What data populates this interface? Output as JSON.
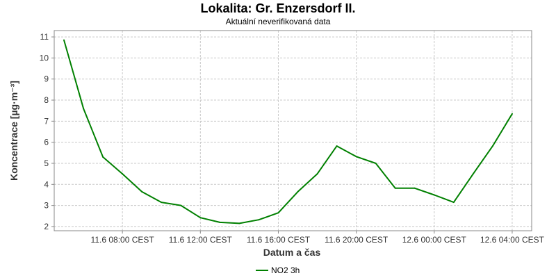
{
  "chart_data": {
    "type": "line",
    "title": "Lokalita: Gr. Enzersdorf II.",
    "subtitle": "Aktuální neverifikovaná data",
    "xlabel": "Datum a čas",
    "ylabel": "Koncentrace [µg·m⁻³]",
    "ylim": [
      1.8,
      11.3
    ],
    "yticks": [
      2,
      3,
      4,
      5,
      6,
      7,
      8,
      9,
      10,
      11
    ],
    "xlim": [
      "2020-06-11 04:30",
      "2020-06-12 05:00"
    ],
    "xticks": [
      {
        "t": "2020-06-11 08:00",
        "label": "11.6 08:00 CEST"
      },
      {
        "t": "2020-06-11 12:00",
        "label": "11.6 12:00 CEST"
      },
      {
        "t": "2020-06-11 16:00",
        "label": "11.6 16:00 CEST"
      },
      {
        "t": "2020-06-11 20:00",
        "label": "11.6 20:00 CEST"
      },
      {
        "t": "2020-06-12 00:00",
        "label": "12.6 00:00 CEST"
      },
      {
        "t": "2020-06-12 04:00",
        "label": "12.6 04:00 CEST"
      }
    ],
    "grid": true,
    "legend_position": "bottom",
    "series": [
      {
        "name": "NO2 3h",
        "color": "#008000",
        "points": [
          {
            "x": "2020-06-11 05:00",
            "y": 10.85
          },
          {
            "x": "2020-06-11 06:00",
            "y": 7.6
          },
          {
            "x": "2020-06-11 07:00",
            "y": 5.3
          },
          {
            "x": "2020-06-11 08:00",
            "y": 4.5
          },
          {
            "x": "2020-06-11 09:00",
            "y": 3.65
          },
          {
            "x": "2020-06-11 10:00",
            "y": 3.15
          },
          {
            "x": "2020-06-11 11:00",
            "y": 3.0
          },
          {
            "x": "2020-06-11 12:00",
            "y": 2.42
          },
          {
            "x": "2020-06-11 13:00",
            "y": 2.2
          },
          {
            "x": "2020-06-11 14:00",
            "y": 2.15
          },
          {
            "x": "2020-06-11 15:00",
            "y": 2.32
          },
          {
            "x": "2020-06-11 16:00",
            "y": 2.65
          },
          {
            "x": "2020-06-11 17:00",
            "y": 3.65
          },
          {
            "x": "2020-06-11 18:00",
            "y": 4.5
          },
          {
            "x": "2020-06-11 19:00",
            "y": 5.82
          },
          {
            "x": "2020-06-11 20:00",
            "y": 5.32
          },
          {
            "x": "2020-06-11 21:00",
            "y": 5.0
          },
          {
            "x": "2020-06-11 22:00",
            "y": 3.82
          },
          {
            "x": "2020-06-11 23:00",
            "y": 3.82
          },
          {
            "x": "2020-06-12 00:00",
            "y": 3.5
          },
          {
            "x": "2020-06-12 01:00",
            "y": 3.15
          },
          {
            "x": "2020-06-12 02:00",
            "y": 4.5
          },
          {
            "x": "2020-06-12 03:00",
            "y": 5.82
          },
          {
            "x": "2020-06-12 04:00",
            "y": 7.35
          }
        ]
      }
    ]
  }
}
